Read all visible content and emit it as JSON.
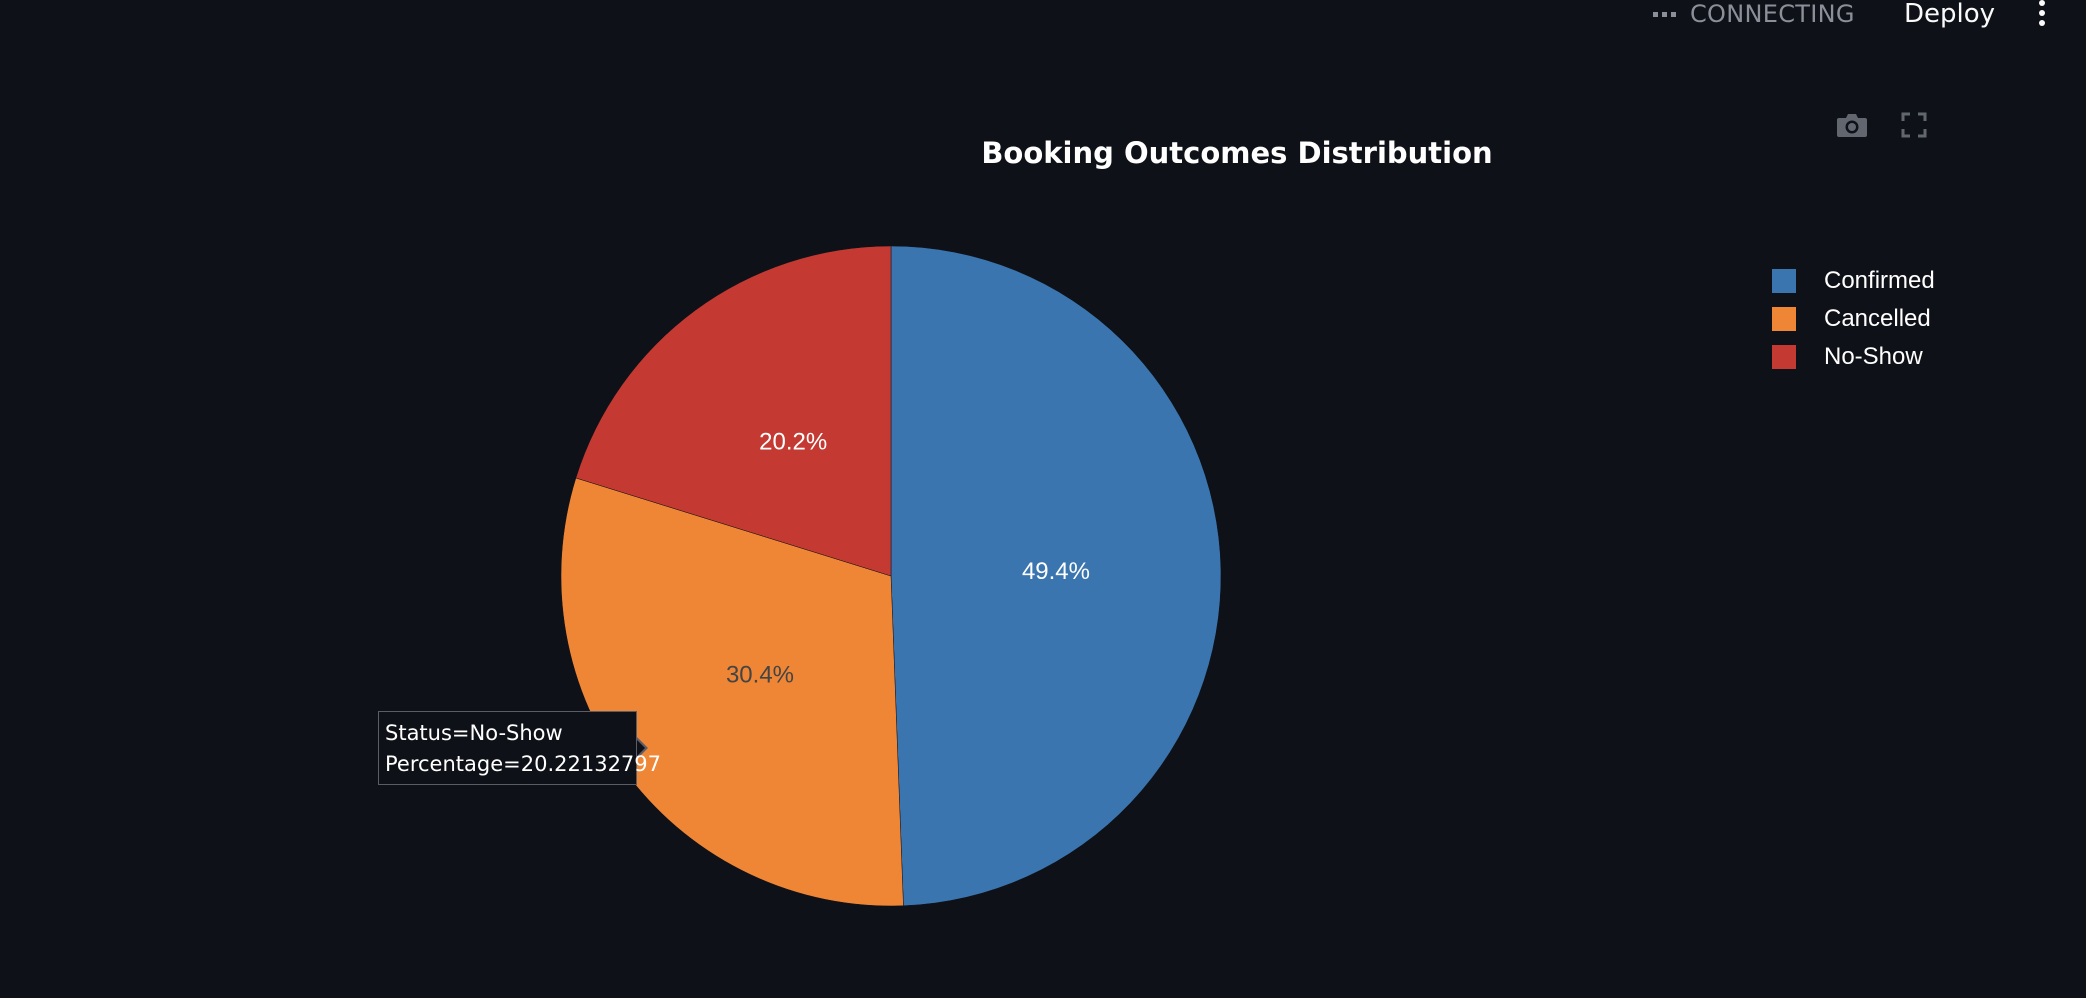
{
  "header": {
    "status_label": "CONNECTING",
    "deploy_label": "Deploy"
  },
  "modebar": {
    "camera_icon": "camera-icon",
    "fullscreen_icon": "fullscreen-icon"
  },
  "chart_data": {
    "type": "pie",
    "title": "Booking Outcomes Distribution",
    "labels": [
      "Confirmed",
      "Cancelled",
      "No-Show"
    ],
    "values": [
      49.4,
      30.4,
      20.2
    ],
    "value_labels": [
      "49.4%",
      "30.4%",
      "20.2%"
    ],
    "colors": [
      "#3b75af",
      "#ef8636",
      "#c43932"
    ],
    "text_colors": [
      "#ffffff",
      "#444444",
      "#ffffff"
    ],
    "legend_position": "top-right"
  },
  "tooltip": {
    "line1": "Status=No-Show",
    "line2": "Percentage=20.22132797"
  },
  "colors": {
    "background": "#0e1117",
    "status_text": "#8b8f99"
  }
}
